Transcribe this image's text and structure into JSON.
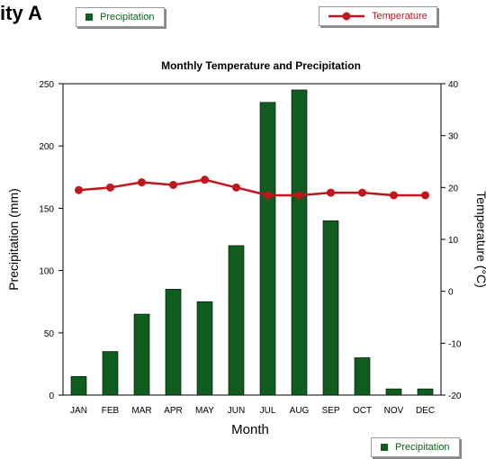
{
  "heading": "ity A",
  "legend_top_precip": "Precipitation",
  "legend_top_temp": "Temperature",
  "legend_bottom_precip": "Precipitation",
  "colors": {
    "bar": "#0f5e1f",
    "line": "#c0161e"
  },
  "chart_data": {
    "type": "bar+line",
    "title": "Monthly Temperature and Precipitation",
    "xlabel": "Month",
    "ylabel_left": "Precipitation (mm)",
    "ylabel_right": "Temperature (°C)",
    "categories": [
      "JAN",
      "FEB",
      "MAR",
      "APR",
      "MAY",
      "JUN",
      "JUL",
      "AUG",
      "SEP",
      "OCT",
      "NOV",
      "DEC"
    ],
    "y_left_range": [
      0,
      250
    ],
    "y_left_ticks": [
      0,
      50,
      100,
      150,
      200,
      250
    ],
    "y_right_range": [
      -20,
      40
    ],
    "y_right_ticks": [
      -20,
      -10,
      0,
      10,
      20,
      30,
      40
    ],
    "series": [
      {
        "name": "Precipitation",
        "kind": "bar",
        "axis": "left",
        "values": [
          15,
          35,
          65,
          85,
          75,
          120,
          235,
          245,
          140,
          30,
          5,
          5
        ]
      },
      {
        "name": "Temperature",
        "kind": "line",
        "axis": "right",
        "values": [
          19.5,
          20,
          21,
          20.5,
          21.5,
          20,
          18.5,
          18.5,
          19,
          19,
          18.5,
          18.5
        ]
      }
    ]
  }
}
